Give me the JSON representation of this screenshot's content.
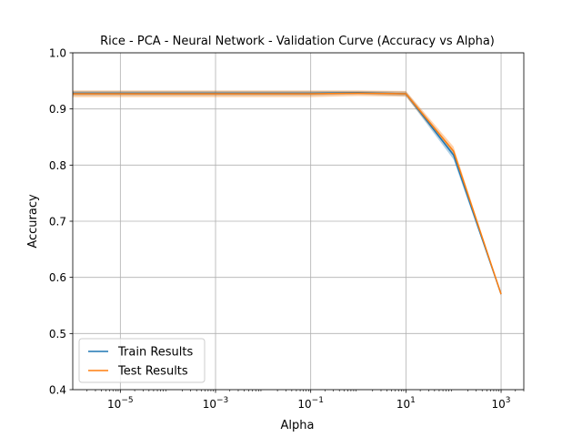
{
  "chart_data": {
    "type": "line",
    "title": "Rice - PCA - Neural Network - Validation Curve (Accuracy vs Alpha)",
    "xlabel": "Alpha",
    "ylabel": "Accuracy",
    "xscale": "log",
    "xlim": [
      1e-06,
      3000
    ],
    "ylim": [
      0.4,
      1.0
    ],
    "yticks": [
      {
        "value": 0.4,
        "label": "0.4"
      },
      {
        "value": 0.5,
        "label": "0.5"
      },
      {
        "value": 0.6,
        "label": "0.6"
      },
      {
        "value": 0.7,
        "label": "0.7"
      },
      {
        "value": 0.8,
        "label": "0.8"
      },
      {
        "value": 0.9,
        "label": "0.9"
      },
      {
        "value": 1.0,
        "label": "1.0"
      }
    ],
    "xticks": [
      {
        "value": 1e-05,
        "base": "10",
        "exp": "−5"
      },
      {
        "value": 0.001,
        "base": "10",
        "exp": "−3"
      },
      {
        "value": 0.1,
        "base": "10",
        "exp": "−1"
      },
      {
        "value": 10,
        "base": "10",
        "exp": "1"
      },
      {
        "value": 1000,
        "base": "10",
        "exp": "3"
      }
    ],
    "grid": true,
    "legend_position": "lower-left",
    "x": [
      1e-06,
      1e-05,
      0.0001,
      0.001,
      0.01,
      0.1,
      1,
      10,
      100,
      1000
    ],
    "series": [
      {
        "name": "Train Results",
        "color": "#1f77b4",
        "values": [
          0.928,
          0.928,
          0.928,
          0.928,
          0.928,
          0.928,
          0.929,
          0.927,
          0.818,
          0.57
        ],
        "band": [
          0.004,
          0.004,
          0.004,
          0.004,
          0.004,
          0.004,
          0.003,
          0.004,
          0.008,
          0.002
        ]
      },
      {
        "name": "Test Results",
        "color": "#ff7f0e",
        "values": [
          0.927,
          0.927,
          0.927,
          0.927,
          0.927,
          0.927,
          0.928,
          0.927,
          0.825,
          0.57
        ],
        "band": [
          0.006,
          0.006,
          0.006,
          0.006,
          0.006,
          0.006,
          0.005,
          0.005,
          0.008,
          0.002
        ]
      }
    ]
  }
}
